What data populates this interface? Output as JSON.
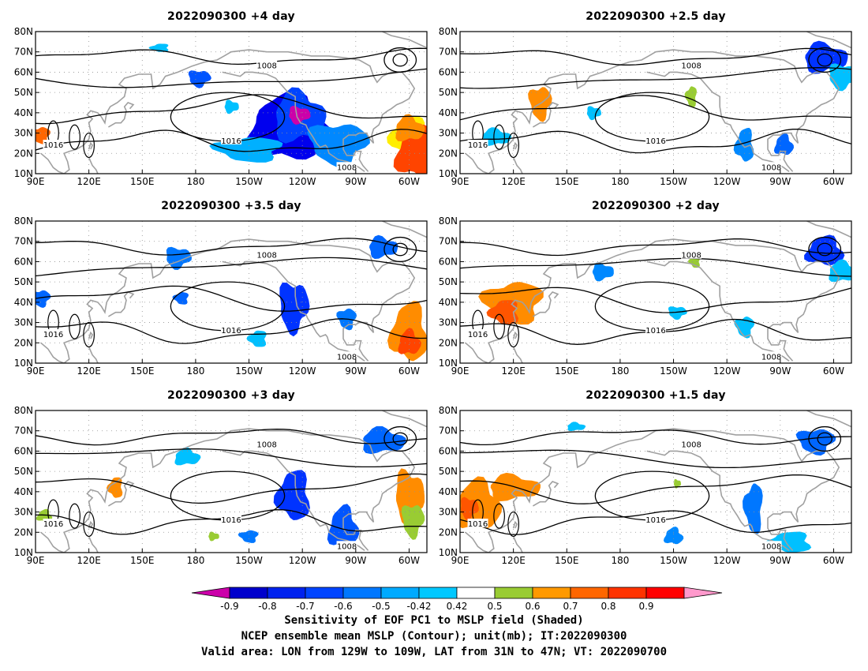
{
  "panels": [
    {
      "title": "2022090300  +4 day",
      "lead_days": 4.0,
      "blobs": [
        [
          "#0000ee",
          -128,
          32,
          22,
          16
        ],
        [
          "#0044ff",
          -122,
          38,
          14,
          12
        ],
        [
          "#cc00aa",
          -122,
          39,
          6,
          4
        ],
        [
          "#0088ff",
          -100,
          25,
          16,
          10
        ],
        [
          "#00b0ff",
          -150,
          22,
          18,
          6
        ],
        [
          "#ffee00",
          -60,
          28,
          10,
          10
        ],
        [
          "#ff4400",
          -55,
          20,
          12,
          12
        ],
        [
          "#ff8c00",
          -60,
          32,
          8,
          6
        ],
        [
          "#00c0ff",
          -160,
          43,
          4,
          3
        ],
        [
          "#0055ff",
          -178,
          57,
          6,
          4
        ],
        [
          "#ff6600",
          93,
          29,
          5,
          4
        ],
        [
          "#00c0ff",
          160,
          72,
          5,
          2
        ]
      ]
    },
    {
      "title": "2022090300  +2.5 day",
      "lead_days": 2.5,
      "blobs": [
        [
          "#0033ff",
          -65,
          67,
          12,
          7
        ],
        [
          "#00c0ff",
          -55,
          58,
          8,
          6
        ],
        [
          "#ff8c00",
          135,
          45,
          6,
          8
        ],
        [
          "#99cc33",
          -140,
          48,
          3,
          5
        ],
        [
          "#0088ff",
          -110,
          24,
          5,
          8
        ],
        [
          "#0066ff",
          -88,
          24,
          5,
          5
        ],
        [
          "#00c0ff",
          110,
          28,
          8,
          4
        ],
        [
          "#00c0ff",
          165,
          40,
          4,
          3
        ]
      ]
    },
    {
      "title": "2022090300  +3.5 day",
      "lead_days": 3.5,
      "blobs": [
        [
          "#0033ff",
          -125,
          38,
          8,
          12
        ],
        [
          "#0077ff",
          -95,
          32,
          5,
          5
        ],
        [
          "#00c0ff",
          -145,
          22,
          5,
          4
        ],
        [
          "#ff8c00",
          -60,
          25,
          10,
          14
        ],
        [
          "#ff4400",
          -60,
          20,
          6,
          6
        ],
        [
          "#0066ff",
          -75,
          67,
          8,
          5
        ],
        [
          "#0077ff",
          170,
          62,
          7,
          5
        ],
        [
          "#0066ff",
          93,
          42,
          5,
          4
        ],
        [
          "#0066ff",
          172,
          42,
          4,
          3
        ]
      ]
    },
    {
      "title": "2022090300  +2 day",
      "lead_days": 2.0,
      "blobs": [
        [
          "#ff8c00",
          120,
          40,
          16,
          10
        ],
        [
          "#ff5500",
          115,
          35,
          8,
          6
        ],
        [
          "#0033ff",
          -65,
          65,
          10,
          7
        ],
        [
          "#00c0ff",
          -55,
          55,
          8,
          5
        ],
        [
          "#0088ff",
          170,
          55,
          6,
          4
        ],
        [
          "#00c0ff",
          -148,
          35,
          5,
          3
        ],
        [
          "#00c0ff",
          -110,
          28,
          5,
          5
        ],
        [
          "#99cc33",
          -138,
          60,
          3,
          3
        ]
      ]
    },
    {
      "title": "2022090300  +3 day",
      "lead_days": 3.0,
      "blobs": [
        [
          "#0033ff",
          -125,
          38,
          9,
          12
        ],
        [
          "#0055ff",
          -97,
          22,
          8,
          10
        ],
        [
          "#0066ff",
          -75,
          65,
          12,
          6
        ],
        [
          "#ff8c00",
          -60,
          38,
          8,
          12
        ],
        [
          "#99cc33",
          -58,
          26,
          6,
          8
        ],
        [
          "#0077ff",
          -150,
          18,
          5,
          3
        ],
        [
          "#ff8c00",
          135,
          42,
          4,
          5
        ],
        [
          "#99cc33",
          95,
          28,
          4,
          3
        ],
        [
          "#00c0ff",
          175,
          57,
          7,
          4
        ],
        [
          "#99cc33",
          -170,
          18,
          3,
          2
        ]
      ]
    },
    {
      "title": "2022090300  +1.5 day",
      "lead_days": 1.5,
      "blobs": [
        [
          "#ff8c00",
          100,
          33,
          12,
          12
        ],
        [
          "#ff8c00",
          120,
          42,
          14,
          6
        ],
        [
          "#ff5500",
          95,
          32,
          5,
          5
        ],
        [
          "#0066ff",
          -70,
          65,
          10,
          6
        ],
        [
          "#0077ff",
          -105,
          32,
          5,
          12
        ],
        [
          "#00c0ff",
          -85,
          15,
          12,
          5
        ],
        [
          "#0088ff",
          -150,
          18,
          5,
          4
        ],
        [
          "#00c0ff",
          155,
          72,
          5,
          2
        ],
        [
          "#99cc33",
          -148,
          44,
          2,
          2
        ]
      ]
    }
  ],
  "axes": {
    "x_ticks": [
      "90E",
      "120E",
      "150E",
      "180",
      "150W",
      "120W",
      "90W",
      "60W"
    ],
    "x_values": [
      90,
      120,
      150,
      180,
      210,
      240,
      270,
      300
    ],
    "y_ticks": [
      "10N",
      "20N",
      "30N",
      "40N",
      "50N",
      "60N",
      "70N",
      "80N"
    ],
    "y_values": [
      10,
      20,
      30,
      40,
      50,
      60,
      70,
      80
    ],
    "lon_range": [
      90,
      310
    ],
    "lat_range": [
      10,
      80
    ]
  },
  "contours": {
    "labels": [
      "1008",
      "1016"
    ],
    "colour": "#000000",
    "coast_colour": "#a0a0a0"
  },
  "colorbar": {
    "labels": [
      "-0.9",
      "-0.8",
      "-0.7",
      "-0.6",
      "-0.5",
      "-0.42",
      "0.42",
      "0.5",
      "0.6",
      "0.7",
      "0.8",
      "0.9"
    ],
    "colors": [
      "#cc00aa",
      "#0000cc",
      "#0022ee",
      "#0044ff",
      "#0077ff",
      "#00aaff",
      "#00c8ff",
      "#ffffff",
      "#99cc33",
      "#ff9900",
      "#ff6600",
      "#ff3300",
      "#ff0000",
      "#ff99cc"
    ]
  },
  "caption": [
    "Sensitivity of EOF PC1 to MSLP field (Shaded)",
    "NCEP ensemble mean MSLP (Contour); unit(mb); IT:2022090300",
    "Valid area: LON from 129W to 109W, LAT from 31N to 47N; VT: 2022090700"
  ]
}
